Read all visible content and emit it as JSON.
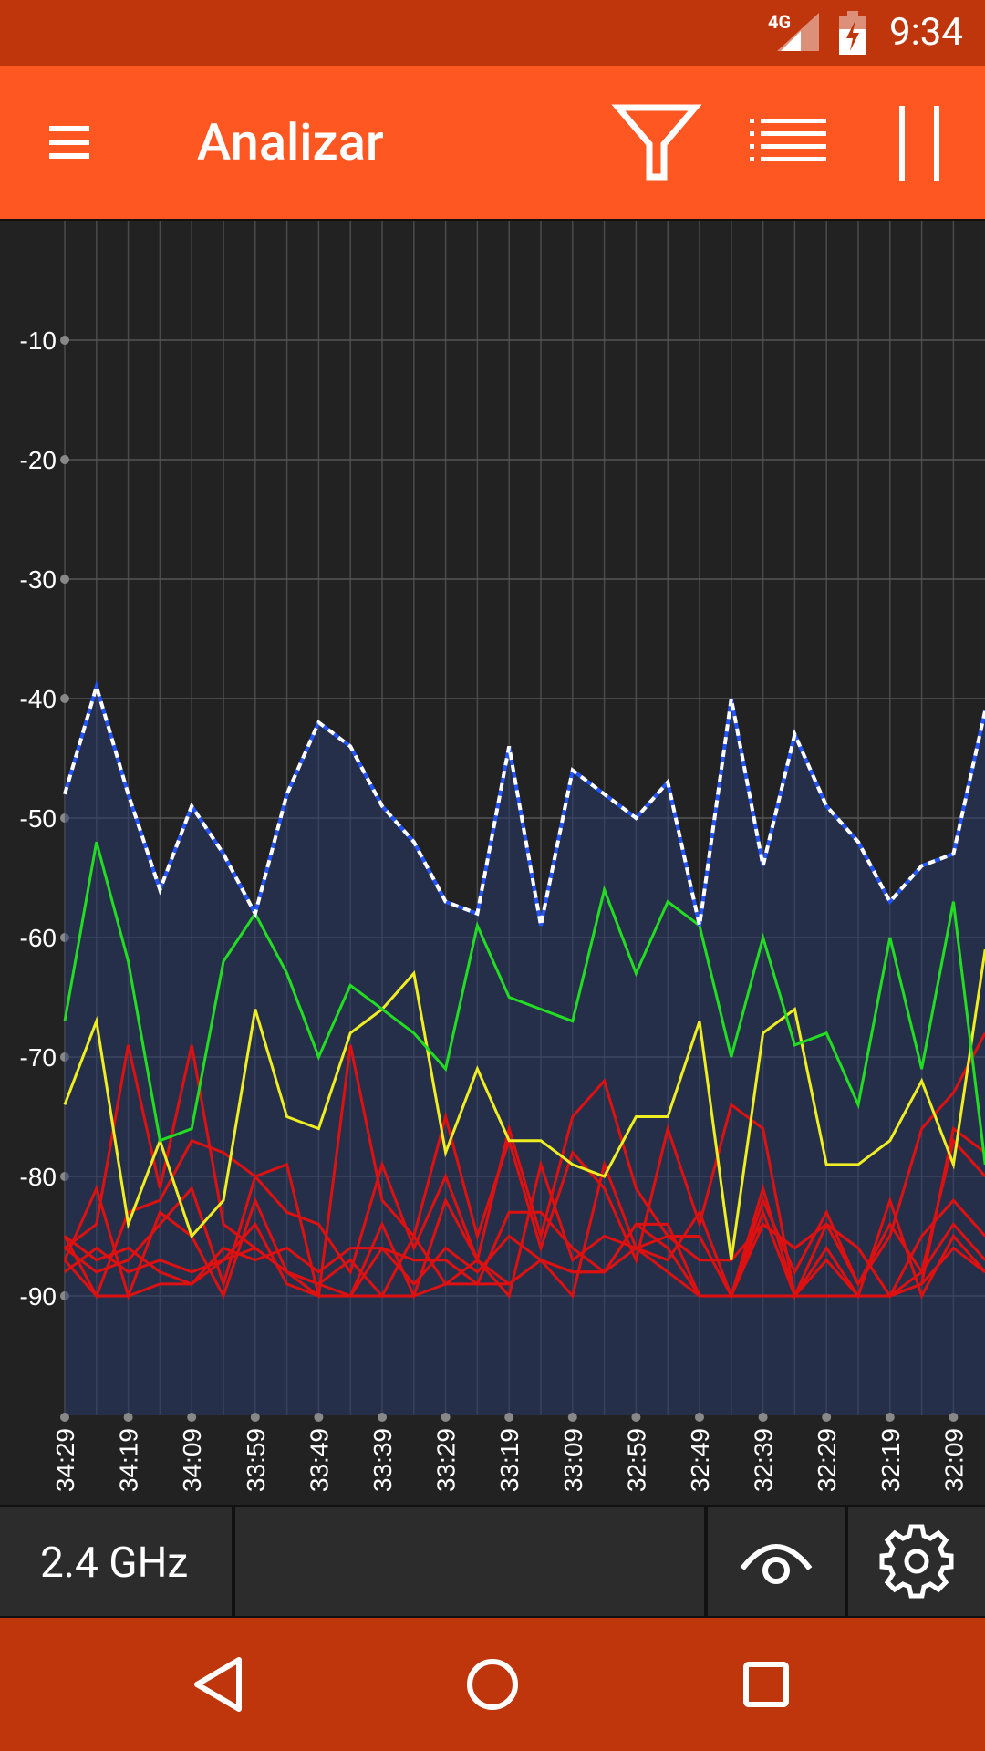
{
  "status_bar": {
    "time": "9:34",
    "network": "4G",
    "icons": [
      "signal-icon",
      "battery-charging-icon"
    ]
  },
  "app_bar": {
    "title": "Analizar",
    "icons": [
      "menu-icon",
      "filter-icon",
      "list-icon",
      "pause-icon"
    ]
  },
  "chart_data": {
    "type": "line",
    "ylabel": "",
    "xlabel": "",
    "ylim": [
      -100,
      0
    ],
    "y_ticks": [
      "-10",
      "-20",
      "-30",
      "-40",
      "-50",
      "-60",
      "-70",
      "-80",
      "-90"
    ],
    "x_ticks": [
      "34:29",
      "34:19",
      "34:09",
      "33:59",
      "33:49",
      "33:39",
      "33:29",
      "33:19",
      "33:09",
      "32:59",
      "32:49",
      "32:39",
      "32:29",
      "32:19",
      "32:09"
    ],
    "grid": true,
    "series": [
      {
        "color": "#ffffff",
        "style": "dashed-highlight",
        "fill": true,
        "values": [
          -48,
          -39,
          -48,
          -56,
          -49,
          -53,
          -58,
          -48,
          -42,
          -44,
          -49,
          -52,
          -57,
          -58,
          -44,
          -59,
          -46,
          -48,
          -50,
          -47,
          -59,
          -40,
          -54,
          -43,
          -49,
          -52,
          -57,
          -54,
          -53,
          -41
        ]
      },
      {
        "color": "#22dd22",
        "values": [
          -67,
          -52,
          -62,
          -77,
          -76,
          -62,
          -58,
          -63,
          -70,
          -64,
          -66,
          -68,
          -71,
          -59,
          -65,
          -66,
          -67,
          -56,
          -63,
          -57,
          -59,
          -70,
          -60,
          -69,
          -68,
          -74,
          -60,
          -71,
          -57,
          -79
        ]
      },
      {
        "color": "#eeee22",
        "values": [
          -74,
          -67,
          -84,
          -77,
          -85,
          -82,
          -66,
          -75,
          -76,
          -68,
          -66,
          -63,
          -78,
          -71,
          -77,
          -77,
          -79,
          -80,
          -75,
          -75,
          -67,
          -87,
          -68,
          -66,
          -79,
          -79,
          -77,
          -72,
          -79,
          -61
        ]
      },
      {
        "color": "#dd1111",
        "values": [
          -86,
          -84,
          -69,
          -81,
          -69,
          -84,
          -86,
          -88,
          -90,
          -69,
          -82,
          -85,
          -75,
          -85,
          -77,
          -86,
          -78,
          -81,
          -87,
          -76,
          -84,
          -74,
          -76,
          -90,
          -84,
          -86,
          -90,
          -89,
          -76,
          -78
        ]
      },
      {
        "color": "#dd1111",
        "values": [
          -85,
          -90,
          -83,
          -82,
          -77,
          -78,
          -80,
          -83,
          -84,
          -88,
          -79,
          -86,
          -80,
          -87,
          -76,
          -85,
          -75,
          -72,
          -81,
          -85,
          -87,
          -87,
          -84,
          -86,
          -84,
          -89,
          -85,
          -76,
          -73,
          -68
        ]
      },
      {
        "color": "#dd1111",
        "values": [
          -87,
          -81,
          -90,
          -83,
          -85,
          -90,
          -82,
          -88,
          -89,
          -90,
          -86,
          -87,
          -87,
          -89,
          -83,
          -83,
          -86,
          -88,
          -84,
          -84,
          -90,
          -90,
          -82,
          -88,
          -83,
          -89,
          -84,
          -88,
          -77,
          -80
        ]
      },
      {
        "color": "#dd1111",
        "values": [
          -88,
          -86,
          -88,
          -87,
          -88,
          -87,
          -86,
          -88,
          -89,
          -87,
          -90,
          -85,
          -89,
          -87,
          -89,
          -87,
          -88,
          -88,
          -86,
          -88,
          -90,
          -90,
          -84,
          -86,
          -84,
          -86,
          -90,
          -85,
          -82,
          -85
        ]
      },
      {
        "color": "#dd1111",
        "values": [
          -86,
          -88,
          -87,
          -84,
          -81,
          -89,
          -80,
          -79,
          -90,
          -90,
          -84,
          -90,
          -82,
          -87,
          -90,
          -79,
          -87,
          -85,
          -86,
          -85,
          -85,
          -90,
          -83,
          -90,
          -86,
          -90,
          -82,
          -90,
          -85,
          -88
        ]
      },
      {
        "color": "#dd1111",
        "values": [
          -85,
          -87,
          -86,
          -88,
          -89,
          -86,
          -87,
          -86,
          -88,
          -86,
          -86,
          -89,
          -86,
          -88,
          -85,
          -87,
          -90,
          -79,
          -86,
          -87,
          -83,
          -90,
          -81,
          -90,
          -87,
          -90,
          -90,
          -88,
          -84,
          -87
        ]
      },
      {
        "color": "#dd1111",
        "values": [
          -87,
          -90,
          -90,
          -89,
          -89,
          -87,
          -84,
          -89,
          -90,
          -90,
          -90,
          -90,
          -89,
          -89,
          -89,
          -87,
          -88,
          -88,
          -84,
          -86,
          -90,
          -90,
          -90,
          -90,
          -90,
          -90,
          -90,
          -89,
          -86,
          -88
        ]
      }
    ]
  },
  "bottom_bar": {
    "band_label": "2.4 GHz",
    "icons": [
      "visibility-icon",
      "gear-icon"
    ]
  },
  "nav_bar": {
    "icons": [
      "back-icon",
      "home-icon",
      "recents-icon"
    ]
  }
}
